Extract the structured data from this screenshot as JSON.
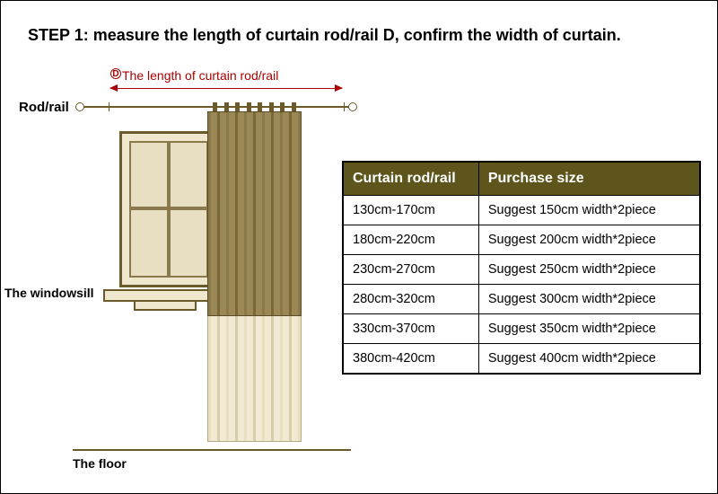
{
  "title": "STEP 1: measure the length of curtain rod/rail D, confirm the width of curtain.",
  "diagram": {
    "d_marker": "D",
    "d_label": "The length of curtain rod/rail",
    "rod_label": "Rod/rail",
    "windowsill_label": "The windowsill",
    "floor_label": "The floor"
  },
  "table": {
    "header_bg": "#5e551c",
    "header_color": "#ffffff",
    "columns": [
      "Curtain rod/rail",
      "Purchase size"
    ],
    "rows": [
      [
        "130cm-170cm",
        "Suggest 150cm width*2piece"
      ],
      [
        "180cm-220cm",
        "Suggest 200cm width*2piece"
      ],
      [
        "230cm-270cm",
        "Suggest 250cm width*2piece"
      ],
      [
        "280cm-320cm",
        "Suggest 300cm width*2piece"
      ],
      [
        "330cm-370cm",
        "Suggest 350cm width*2piece"
      ],
      [
        "380cm-420cm",
        "Suggest 400cm width*2piece"
      ]
    ]
  },
  "colors": {
    "accent_red": "#a00000",
    "wood_dark": "#6b5a2a",
    "wood_mid": "#8a794a",
    "curtain_upper": "#9c8854",
    "curtain_lower": "#f1e9d2",
    "window_fill": "#efe6ce"
  }
}
